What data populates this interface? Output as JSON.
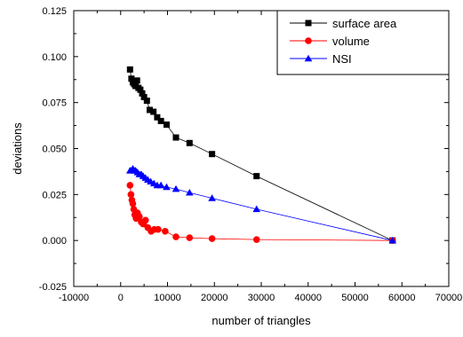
{
  "chart_data": {
    "type": "line",
    "xlabel": "number of triangles",
    "ylabel": "deviations",
    "xlim": [
      -10000,
      70000
    ],
    "ylim": [
      -0.025,
      0.125
    ],
    "x_ticks": [
      -10000,
      0,
      10000,
      20000,
      30000,
      40000,
      50000,
      60000,
      70000
    ],
    "x_tick_labels": [
      "-10000",
      "0",
      "10000",
      "20000",
      "30000",
      "40000",
      "50000",
      "60000",
      "70000"
    ],
    "y_ticks": [
      -0.025,
      0.0,
      0.025,
      0.05,
      0.075,
      0.1,
      0.125
    ],
    "y_tick_labels": [
      "-0.025",
      "0.000",
      "0.025",
      "0.050",
      "0.075",
      "0.100",
      "0.125"
    ],
    "grid": false,
    "legend_position": "top-right",
    "series": [
      {
        "name": "surface area",
        "color": "#000000",
        "marker": "square",
        "points": [
          [
            2000,
            0.093
          ],
          [
            2300,
            0.088
          ],
          [
            2600,
            0.086
          ],
          [
            2900,
            0.085
          ],
          [
            3200,
            0.084
          ],
          [
            3500,
            0.087
          ],
          [
            3800,
            0.083
          ],
          [
            4200,
            0.082
          ],
          [
            4600,
            0.08
          ],
          [
            5000,
            0.078
          ],
          [
            5600,
            0.076
          ],
          [
            6200,
            0.071
          ],
          [
            7000,
            0.07
          ],
          [
            7800,
            0.067
          ],
          [
            8600,
            0.065
          ],
          [
            9800,
            0.063
          ],
          [
            11800,
            0.056
          ],
          [
            14700,
            0.053
          ],
          [
            19500,
            0.047
          ],
          [
            29000,
            0.035
          ],
          [
            58000,
            0.0
          ]
        ]
      },
      {
        "name": "volume",
        "color": "#ff0000",
        "marker": "circle",
        "points": [
          [
            2000,
            0.03
          ],
          [
            2200,
            0.025
          ],
          [
            2400,
            0.022
          ],
          [
            2600,
            0.02
          ],
          [
            2800,
            0.017
          ],
          [
            3000,
            0.014
          ],
          [
            3300,
            0.012
          ],
          [
            3600,
            0.015
          ],
          [
            4000,
            0.013
          ],
          [
            4400,
            0.01
          ],
          [
            4800,
            0.009
          ],
          [
            5300,
            0.011
          ],
          [
            5800,
            0.007
          ],
          [
            6500,
            0.005
          ],
          [
            7200,
            0.006
          ],
          [
            8000,
            0.006
          ],
          [
            9500,
            0.005
          ],
          [
            11800,
            0.002
          ],
          [
            14700,
            0.0015
          ],
          [
            19500,
            0.001
          ],
          [
            29000,
            0.0005
          ],
          [
            58000,
            0.0
          ]
        ]
      },
      {
        "name": "NSI",
        "color": "#0000ff",
        "marker": "triangle",
        "points": [
          [
            2000,
            0.038
          ],
          [
            2300,
            0.038
          ],
          [
            2600,
            0.039
          ],
          [
            2900,
            0.038
          ],
          [
            3200,
            0.038
          ],
          [
            3600,
            0.037
          ],
          [
            4000,
            0.036
          ],
          [
            4400,
            0.036
          ],
          [
            4800,
            0.035
          ],
          [
            5300,
            0.034
          ],
          [
            5800,
            0.033
          ],
          [
            6400,
            0.032
          ],
          [
            7100,
            0.031
          ],
          [
            7800,
            0.03
          ],
          [
            8600,
            0.03
          ],
          [
            9800,
            0.029
          ],
          [
            11800,
            0.028
          ],
          [
            14700,
            0.026
          ],
          [
            19500,
            0.023
          ],
          [
            29000,
            0.017
          ],
          [
            58000,
            0.0
          ]
        ]
      }
    ]
  }
}
